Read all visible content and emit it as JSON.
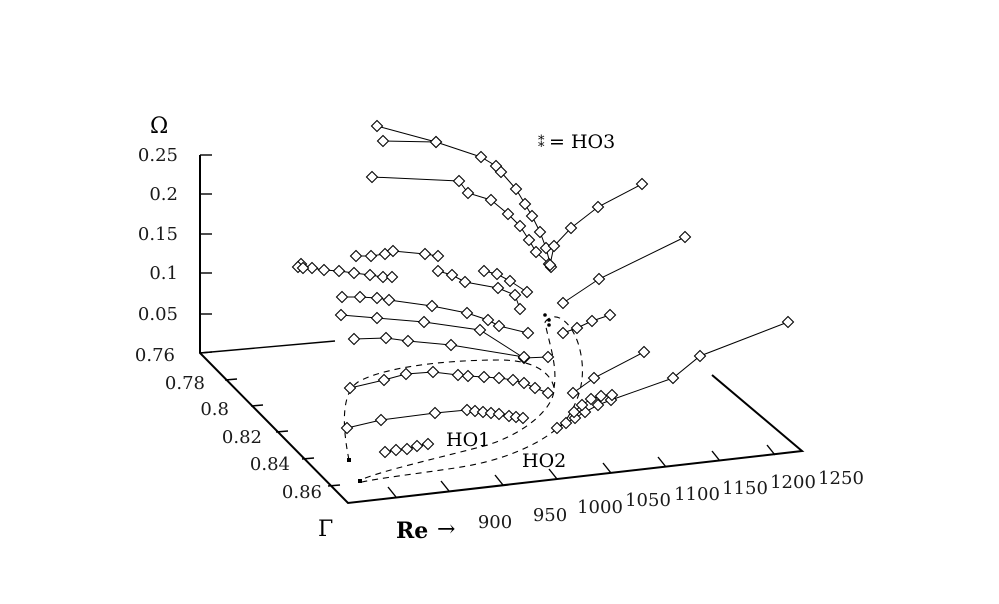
{
  "chart_data": {
    "type": "scatter",
    "title": "",
    "axes": {
      "omega": {
        "label": "Ω",
        "ticks": [
          "0.25",
          "0.2",
          "0.15",
          "0.1",
          "0.05"
        ]
      },
      "gamma": {
        "label": "Γ",
        "ticks": [
          "0.76",
          "0.78",
          "0.8",
          "0.82",
          "0.84",
          "0.86"
        ]
      },
      "re": {
        "label": "Re",
        "arrow": "→",
        "ticks": [
          "900",
          "950",
          "1000",
          "1050",
          "1100",
          "1150",
          "1200",
          "1250"
        ]
      }
    },
    "annotations": {
      "legend_marker": "⁑",
      "legend_text": "= HO3",
      "ho1": "HO1",
      "ho2": "HO2"
    },
    "series_groups": [
      {
        "kind": "diamond-polyline",
        "lines": 20
      },
      {
        "kind": "dashed-curve",
        "lines": 1
      },
      {
        "kind": "small-cross",
        "lines": 1
      }
    ],
    "grid": false,
    "legend_position": "top-right"
  }
}
